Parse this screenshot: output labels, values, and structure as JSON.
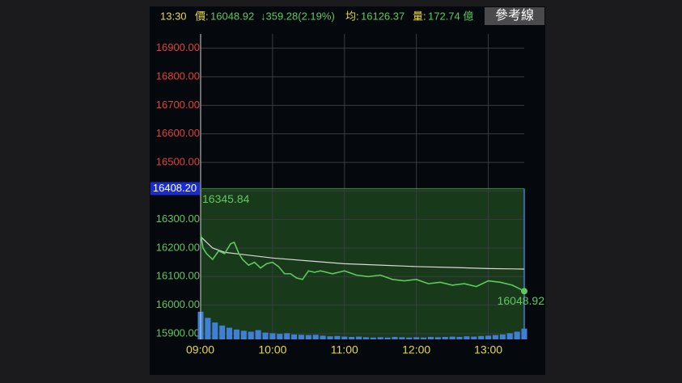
{
  "header": {
    "time": "13:30",
    "price_label": "價:",
    "price": "16048.92",
    "change": "↓359.28(2.19%)",
    "avg_label": "均:",
    "avg": "16126.37",
    "volume_label": "量:",
    "volume": "172.74 億",
    "button": "參考線"
  },
  "chart_data": {
    "type": "line",
    "xlim": [
      0,
      270
    ],
    "xticks": [
      {
        "value": 0,
        "label": "09:00"
      },
      {
        "value": 60,
        "label": "10:00"
      },
      {
        "value": 120,
        "label": "11:00"
      },
      {
        "value": 180,
        "label": "12:00"
      },
      {
        "value": 240,
        "label": "13:00"
      }
    ],
    "ylim": [
      15880,
      16950
    ],
    "yticks": [
      {
        "value": 15900,
        "label": "15900.00"
      },
      {
        "value": 16000,
        "label": "16000.00"
      },
      {
        "value": 16100,
        "label": "16100.00"
      },
      {
        "value": 16200,
        "label": "16200.00"
      },
      {
        "value": 16300,
        "label": "16300.00"
      },
      {
        "value": 16400,
        "label": "16400.00"
      },
      {
        "value": 16500,
        "label": "16500.00"
      },
      {
        "value": 16600,
        "label": "16600.00"
      },
      {
        "value": 16700,
        "label": "16700.00"
      },
      {
        "value": 16800,
        "label": "16800.00"
      },
      {
        "value": 16900,
        "label": "16900.00"
      }
    ],
    "grid": true,
    "reference": {
      "value": 16408.2,
      "label": "16408.20"
    },
    "up_color": "#e0423a",
    "down_color": "#5ec95e",
    "annotations": {
      "high": "16345.84",
      "last": "16048.92"
    },
    "series": [
      {
        "name": "價",
        "color": "#5ec95e",
        "x": [
          0,
          2,
          5,
          10,
          15,
          20,
          25,
          28,
          32,
          35,
          40,
          45,
          50,
          55,
          60,
          65,
          70,
          75,
          80,
          85,
          90,
          95,
          100,
          110,
          120,
          130,
          140,
          150,
          160,
          170,
          180,
          190,
          200,
          210,
          220,
          230,
          240,
          250,
          260,
          270
        ],
        "values": [
          16250,
          16200,
          16180,
          16160,
          16190,
          16180,
          16215,
          16220,
          16180,
          16160,
          16140,
          16150,
          16130,
          16145,
          16150,
          16135,
          16110,
          16110,
          16095,
          16090,
          16120,
          16115,
          16120,
          16110,
          16120,
          16105,
          16100,
          16105,
          16090,
          16085,
          16090,
          16075,
          16080,
          16070,
          16075,
          16065,
          16085,
          16080,
          16070,
          16048.92
        ]
      },
      {
        "name": "均",
        "color": "#d8d8d8",
        "x": [
          0,
          10,
          20,
          40,
          60,
          90,
          120,
          150,
          180,
          210,
          240,
          270
        ],
        "values": [
          16240,
          16200,
          16185,
          16175,
          16165,
          16155,
          16145,
          16140,
          16135,
          16132,
          16128,
          16126.37
        ]
      }
    ],
    "volume": {
      "color": "#3f7fd6",
      "vlim": [
        0,
        100
      ],
      "x": [
        0,
        6,
        12,
        18,
        24,
        30,
        36,
        42,
        48,
        54,
        60,
        66,
        72,
        78,
        84,
        90,
        96,
        102,
        108,
        114,
        120,
        126,
        132,
        138,
        144,
        150,
        156,
        162,
        168,
        174,
        180,
        186,
        192,
        198,
        204,
        210,
        216,
        222,
        228,
        234,
        240,
        246,
        252,
        258,
        264,
        270
      ],
      "values": [
        90,
        70,
        55,
        45,
        38,
        32,
        28,
        25,
        30,
        22,
        20,
        18,
        20,
        16,
        15,
        14,
        15,
        12,
        10,
        11,
        9,
        8,
        9,
        7,
        6,
        7,
        6,
        8,
        7,
        6,
        7,
        6,
        8,
        7,
        8,
        9,
        8,
        10,
        9,
        11,
        12,
        14,
        16,
        20,
        25,
        35
      ]
    }
  }
}
